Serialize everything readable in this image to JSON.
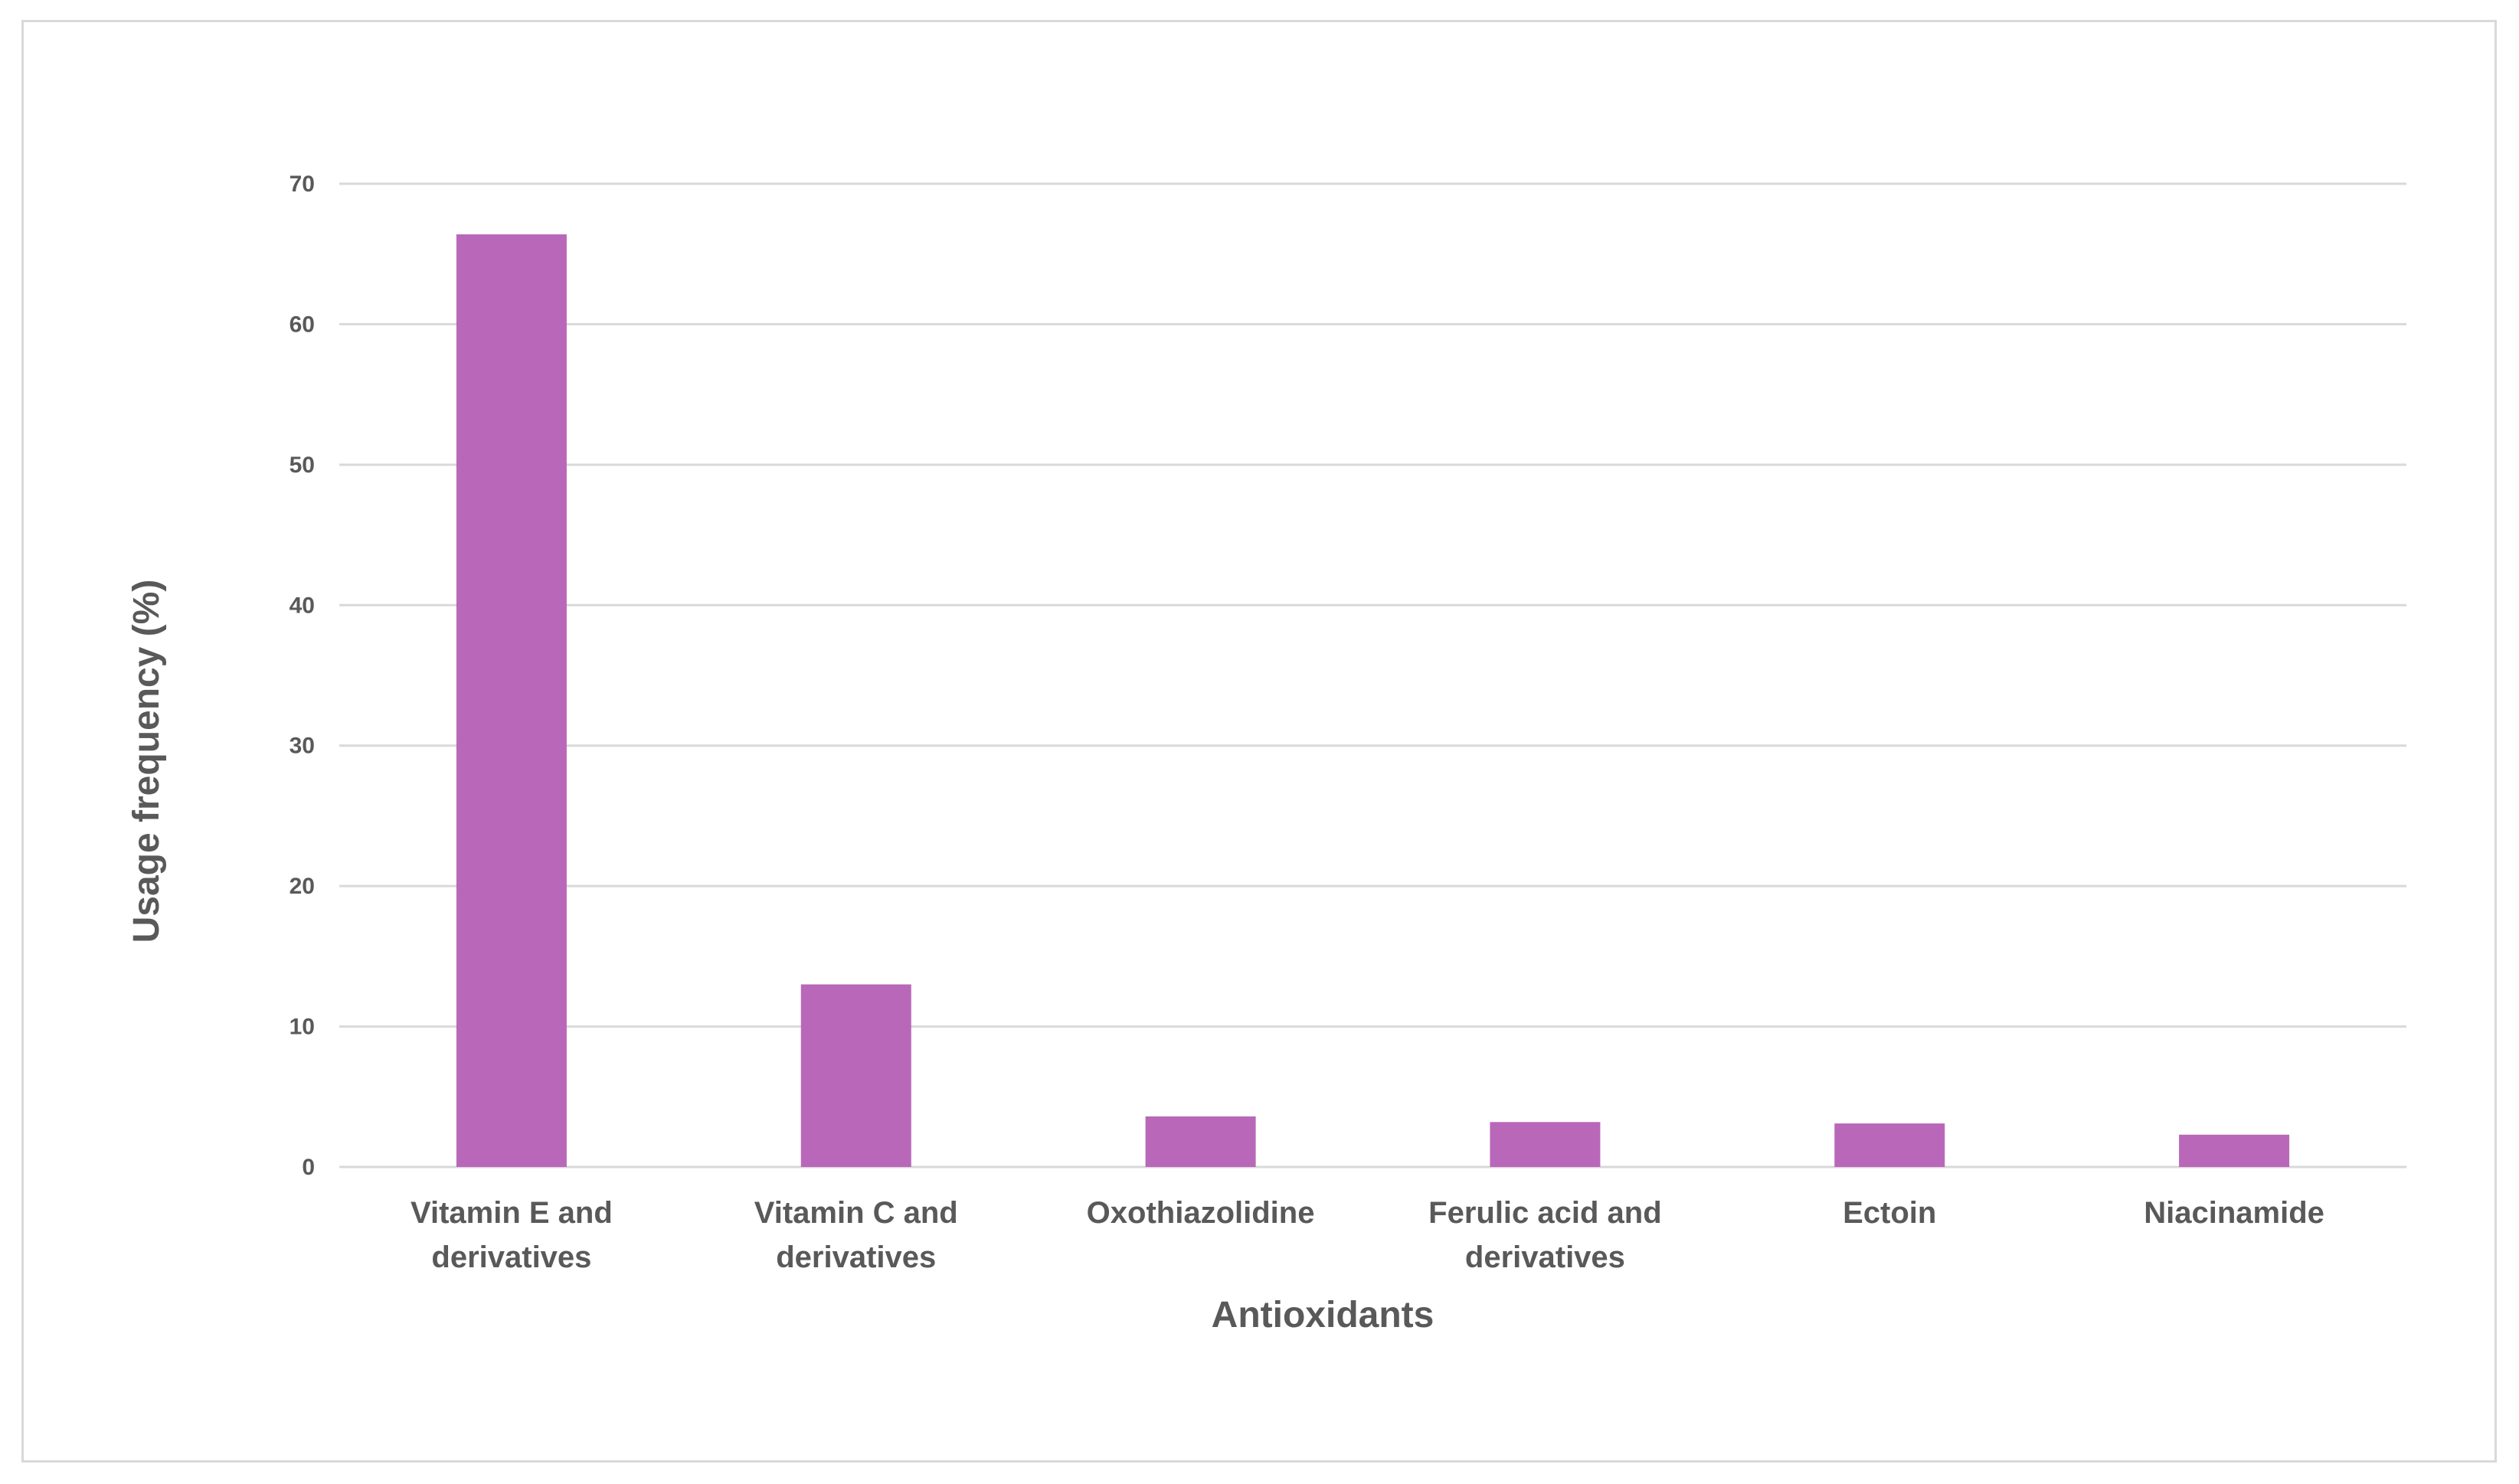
{
  "chart_data": {
    "type": "bar",
    "title": "",
    "xlabel": "Antioxidants",
    "ylabel": "Usage frequency (%)",
    "ylim": [
      0,
      70
    ],
    "yticks": [
      0,
      10,
      20,
      30,
      40,
      50,
      60,
      70
    ],
    "grid": true,
    "legend": "none",
    "categories": [
      [
        "Vitamin E and",
        "derivatives"
      ],
      [
        "Vitamin C and",
        "derivatives"
      ],
      [
        "Oxothiazolidine"
      ],
      [
        "Ferulic acid and",
        "derivatives"
      ],
      [
        "Ectoin"
      ],
      [
        "Niacinamide"
      ]
    ],
    "values": [
      66.4,
      13.0,
      3.6,
      3.2,
      3.1,
      2.3
    ],
    "colors": {
      "bar": "#b968b9",
      "grid": "#d9d9d9",
      "text": "#595959",
      "frame": "#d9d9d9"
    }
  }
}
